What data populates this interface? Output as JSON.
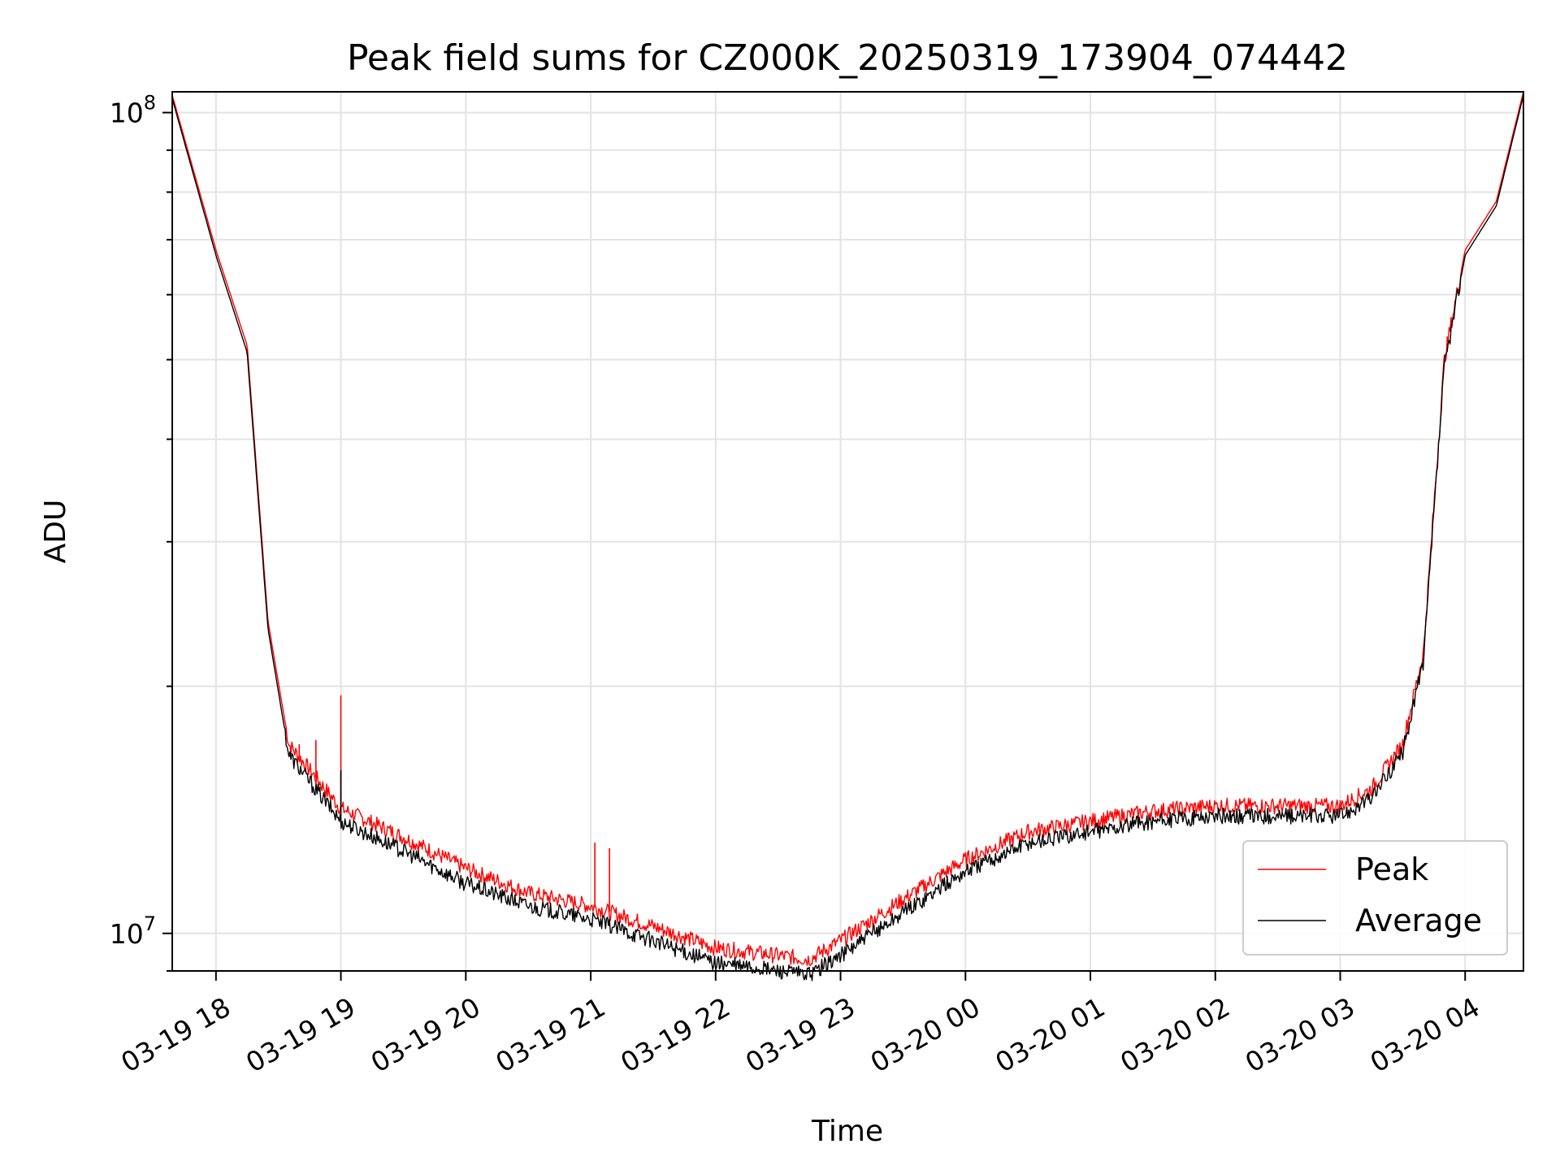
{
  "chart_data": {
    "type": "line",
    "title": "Peak field sums for CZ000K_20250319_173904_074442",
    "xlabel": "Time",
    "ylabel": "ADU",
    "y_scale": "log",
    "ylim": [
      9000000,
      106000000
    ],
    "xlim": [
      "03-19 17:39",
      "03-20 04:28"
    ],
    "x_ticks": [
      "03-19 18",
      "03-19 19",
      "03-19 20",
      "03-19 21",
      "03-19 22",
      "03-19 23",
      "03-20 00",
      "03-20 01",
      "03-20 02",
      "03-20 03",
      "03-20 04"
    ],
    "y_ticks": [
      {
        "value": 10000000,
        "base": "10",
        "exp": "7"
      },
      {
        "value": 100000000,
        "base": "10",
        "exp": "8"
      }
    ],
    "grid": true,
    "legend_position": "lower-right",
    "series": [
      {
        "name": "Peak",
        "color": "#ff0000",
        "x": [
          "03-19 17:39",
          "03-19 18:00",
          "03-19 18:15",
          "03-19 18:25",
          "03-19 18:35",
          "03-19 19:00",
          "03-19 19:30",
          "03-19 20:00",
          "03-19 20:30",
          "03-19 21:00",
          "03-19 21:30",
          "03-19 22:00",
          "03-19 22:30",
          "03-19 22:45",
          "03-19 23:00",
          "03-19 23:30",
          "03-20 00:00",
          "03-20 00:30",
          "03-20 01:00",
          "03-20 01:30",
          "03-20 02:00",
          "03-20 02:30",
          "03-20 03:00",
          "03-20 03:15",
          "03-20 03:30",
          "03-20 03:40",
          "03-20 03:50",
          "03-20 04:00",
          "03-20 04:15",
          "03-20 04:28"
        ],
        "y": [
          105000000,
          68000000,
          52000000,
          24000000,
          17000000,
          14200000,
          13100000,
          12000000,
          11200000,
          10800000,
          10200000,
          9600000,
          9400000,
          9300000,
          9800000,
          11000000,
          12300000,
          13300000,
          13700000,
          14100000,
          14300000,
          14300000,
          14300000,
          15000000,
          17000000,
          22000000,
          50000000,
          68000000,
          78000000,
          106000000
        ]
      },
      {
        "name": "Average",
        "color": "#000000",
        "x": [
          "03-19 17:39",
          "03-19 18:00",
          "03-19 18:15",
          "03-19 18:25",
          "03-19 18:35",
          "03-19 19:00",
          "03-19 19:30",
          "03-19 20:00",
          "03-19 20:30",
          "03-19 21:00",
          "03-19 21:30",
          "03-19 22:00",
          "03-19 22:30",
          "03-19 22:45",
          "03-19 23:00",
          "03-19 23:30",
          "03-20 00:00",
          "03-20 00:30",
          "03-20 01:00",
          "03-20 01:30",
          "03-20 02:00",
          "03-20 02:30",
          "03-20 03:00",
          "03-20 03:15",
          "03-20 03:30",
          "03-20 03:40",
          "03-20 03:50",
          "03-20 04:00",
          "03-20 04:15",
          "03-20 04:28"
        ],
        "y": [
          104000000,
          67000000,
          51000000,
          23500000,
          16500000,
          13700000,
          12600000,
          11500000,
          10800000,
          10400000,
          9800000,
          9200000,
          9000000,
          8900000,
          9400000,
          10600000,
          11900000,
          12900000,
          13300000,
          13700000,
          13900000,
          13900000,
          13900000,
          14600000,
          16600000,
          21500000,
          49000000,
          67000000,
          77000000,
          105000000
        ]
      }
    ],
    "spikes": [
      {
        "series": "Peak",
        "x": "03-19 18:40",
        "y": 17000000
      },
      {
        "series": "Peak",
        "x": "03-19 18:48",
        "y": 17200000
      },
      {
        "series": "Peak",
        "x": "03-19 19:00",
        "y": 19500000
      },
      {
        "series": "Average",
        "x": "03-19 19:00",
        "y": 15800000
      },
      {
        "series": "Peak",
        "x": "03-19 21:02",
        "y": 12900000
      },
      {
        "series": "Peak",
        "x": "03-19 21:09",
        "y": 12700000
      }
    ]
  }
}
